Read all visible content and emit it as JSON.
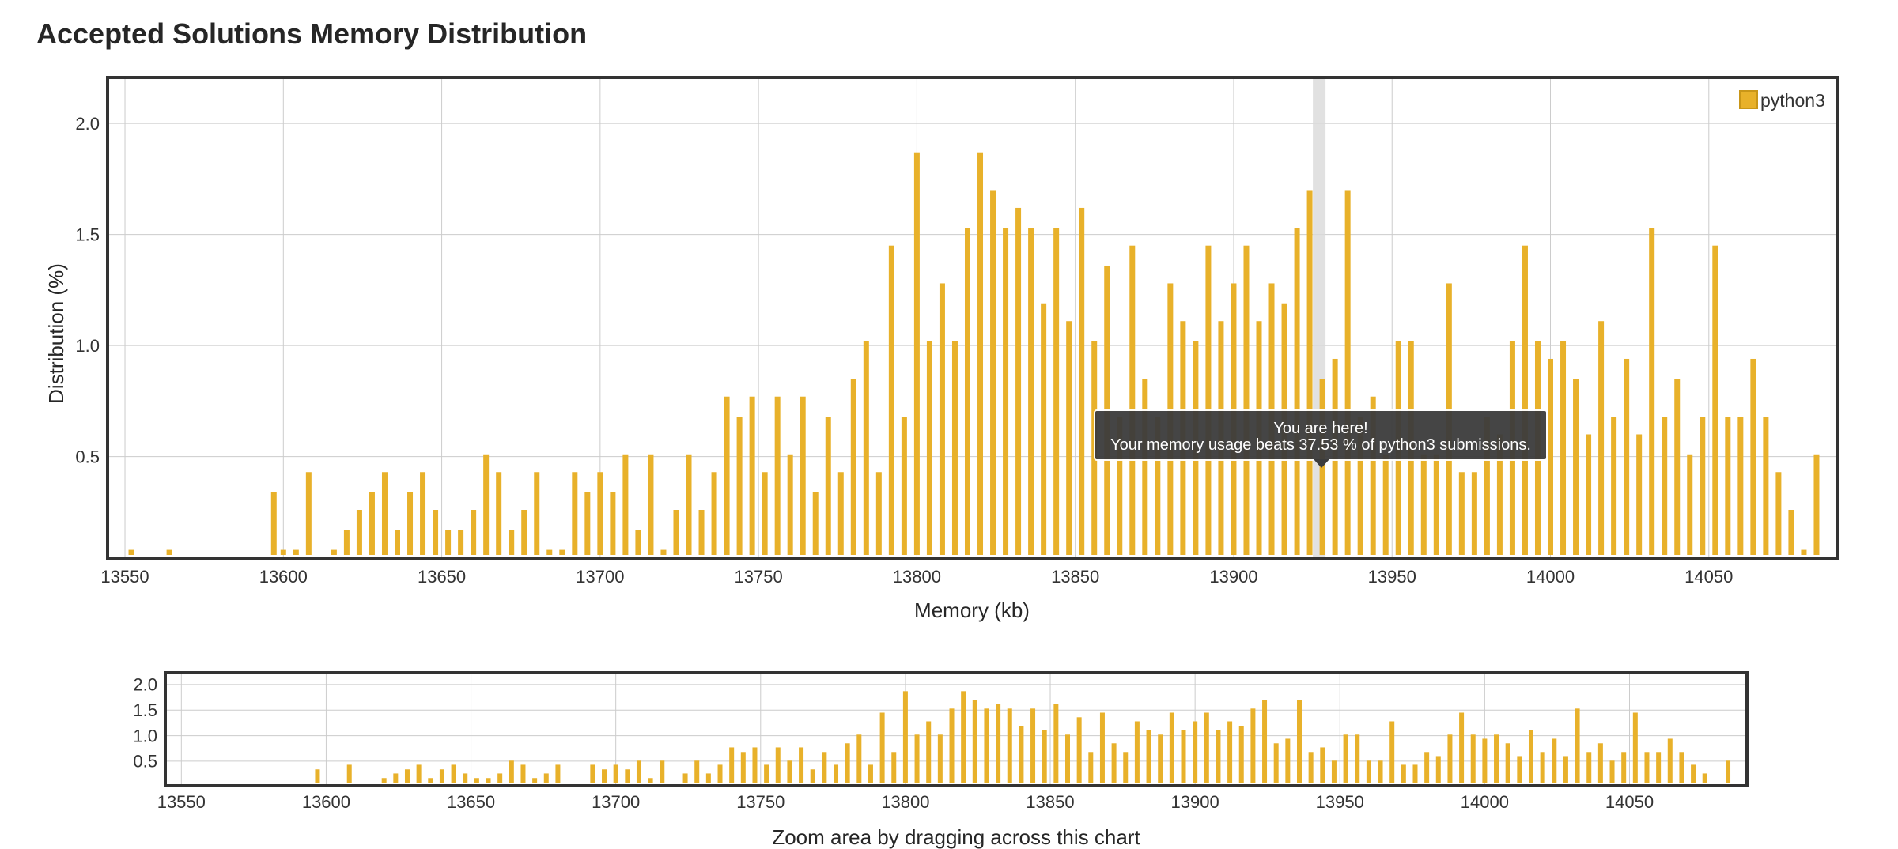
{
  "title": "Accepted Solutions Memory Distribution",
  "colors": {
    "bar": "#e8b12a",
    "bar_stroke": "#c99618",
    "frame": "#333333",
    "grid": "#cccccc",
    "tooltip_bg": "#3c3c3c",
    "highlight_band": "#d9d9d9"
  },
  "tooltip": {
    "line1": "You are here!",
    "line2": "Your memory usage beats 37.53 % of python3 submissions."
  },
  "overview": {
    "caption": "Zoom area by dragging across this chart"
  },
  "chart_data": {
    "type": "bar",
    "title": "",
    "xlabel": "Memory (kb)",
    "ylabel": "Distribution (%)",
    "xlim": [
      13545,
      14090
    ],
    "ylim": [
      0.05,
      2.2
    ],
    "xticks": [
      13550,
      13600,
      13650,
      13700,
      13750,
      13800,
      13850,
      13900,
      13950,
      14000,
      14050
    ],
    "yticks": [
      0.5,
      1.0,
      1.5,
      2.0
    ],
    "ytick_labels": [
      "0.5",
      "1.0",
      "1.5",
      "2.0"
    ],
    "overview_ylim": [
      0.05,
      2.2
    ],
    "overview_yticks": [
      0.5,
      1.0,
      1.5,
      2.0
    ],
    "overview_ytick_labels": [
      "0.5",
      "1.0",
      "1.5",
      "2.0"
    ],
    "grid": true,
    "legend_position": "top-right",
    "highlight_x": 13927,
    "series": [
      {
        "name": "python3",
        "x": [
          13552,
          13564,
          13597,
          13600,
          13604,
          13608,
          13616,
          13620,
          13624,
          13628,
          13632,
          13636,
          13640,
          13644,
          13648,
          13652,
          13656,
          13660,
          13664,
          13668,
          13672,
          13676,
          13680,
          13684,
          13688,
          13692,
          13696,
          13700,
          13704,
          13708,
          13712,
          13716,
          13720,
          13724,
          13728,
          13732,
          13736,
          13740,
          13744,
          13748,
          13752,
          13756,
          13760,
          13764,
          13768,
          13772,
          13776,
          13780,
          13784,
          13788,
          13792,
          13796,
          13800,
          13804,
          13808,
          13812,
          13816,
          13820,
          13824,
          13828,
          13832,
          13836,
          13840,
          13844,
          13848,
          13852,
          13856,
          13860,
          13864,
          13868,
          13872,
          13876,
          13880,
          13884,
          13888,
          13892,
          13896,
          13900,
          13904,
          13908,
          13912,
          13916,
          13920,
          13924,
          13928,
          13932,
          13936,
          13940,
          13944,
          13948,
          13952,
          13956,
          13960,
          13964,
          13968,
          13972,
          13976,
          13980,
          13984,
          13988,
          13992,
          13996,
          14000,
          14004,
          14008,
          14012,
          14016,
          14020,
          14024,
          14028,
          14032,
          14036,
          14040,
          14044,
          14048,
          14052,
          14056,
          14060,
          14064,
          14068,
          14072,
          14076,
          14080,
          14084
        ],
        "values": [
          0.08,
          0.08,
          0.34,
          0.08,
          0.08,
          0.43,
          0.08,
          0.17,
          0.26,
          0.34,
          0.43,
          0.17,
          0.34,
          0.43,
          0.26,
          0.17,
          0.17,
          0.26,
          0.51,
          0.43,
          0.17,
          0.26,
          0.43,
          0.08,
          0.08,
          0.43,
          0.34,
          0.43,
          0.34,
          0.51,
          0.17,
          0.51,
          0.08,
          0.26,
          0.51,
          0.26,
          0.43,
          0.77,
          0.68,
          0.77,
          0.43,
          0.77,
          0.51,
          0.77,
          0.34,
          0.68,
          0.43,
          0.85,
          1.02,
          0.43,
          1.45,
          0.68,
          1.87,
          1.02,
          1.28,
          1.02,
          1.53,
          1.87,
          1.7,
          1.53,
          1.62,
          1.53,
          1.19,
          1.53,
          1.11,
          1.62,
          1.02,
          1.36,
          0.68,
          1.45,
          0.85,
          0.68,
          1.28,
          1.11,
          1.02,
          1.45,
          1.11,
          1.28,
          1.45,
          1.11,
          1.28,
          1.19,
          1.53,
          1.7,
          0.85,
          0.94,
          1.7,
          0.68,
          0.77,
          0.51,
          1.02,
          1.02,
          0.51,
          0.51,
          1.28,
          0.43,
          0.43,
          0.68,
          0.6,
          1.02,
          1.45,
          1.02,
          0.94,
          1.02,
          0.85,
          0.6,
          1.11,
          0.68,
          0.94,
          0.6,
          1.53,
          0.68,
          0.85,
          0.51,
          0.68,
          1.45,
          0.68,
          0.68,
          0.94,
          0.68,
          0.43,
          0.26,
          0.08,
          0.51
        ]
      }
    ]
  }
}
